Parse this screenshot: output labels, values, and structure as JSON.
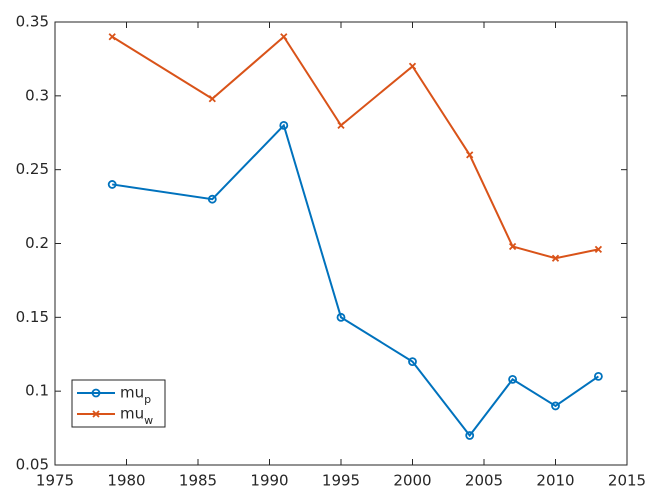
{
  "chart_data": {
    "type": "line",
    "x": [
      1979,
      1986,
      1991,
      1995,
      2000,
      2004,
      2007,
      2010,
      2013
    ],
    "series": [
      {
        "name": "mu_p",
        "color": "#0072BD",
        "marker": "circle",
        "values": [
          0.24,
          0.23,
          0.28,
          0.15,
          0.12,
          0.07,
          0.108,
          0.09,
          0.11
        ]
      },
      {
        "name": "mu_w",
        "color": "#D95319",
        "marker": "x",
        "values": [
          0.34,
          0.298,
          0.34,
          0.28,
          0.32,
          0.26,
          0.198,
          0.19,
          0.196
        ]
      }
    ],
    "xlim": [
      1975,
      2015
    ],
    "xticks": [
      1975,
      1980,
      1985,
      1990,
      1995,
      2000,
      2005,
      2010,
      2015
    ],
    "ylim": [
      0.05,
      0.35
    ],
    "yticks": [
      0.05,
      0.1,
      0.15,
      0.2,
      0.25,
      0.3,
      0.35
    ],
    "grid": false,
    "legend": "lower-left"
  }
}
